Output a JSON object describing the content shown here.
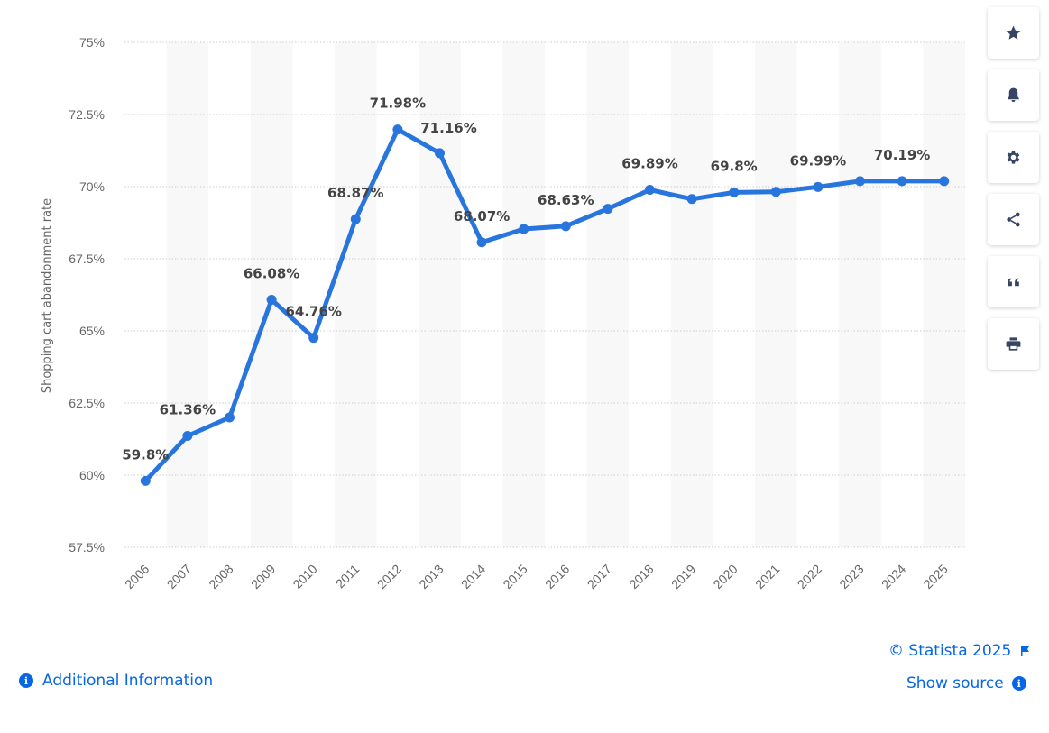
{
  "chart_data": {
    "type": "line",
    "ylabel": "Shopping cart abandonment rate",
    "xlabel": "",
    "categories": [
      "2006",
      "2007",
      "2008",
      "2009",
      "2010",
      "2011",
      "2012",
      "2013",
      "2014",
      "2015",
      "2016",
      "2017",
      "2018",
      "2019",
      "2020",
      "2021",
      "2022",
      "2023",
      "2024",
      "2025"
    ],
    "values": [
      59.8,
      61.36,
      62.0,
      66.08,
      64.76,
      68.87,
      71.98,
      71.16,
      68.07,
      68.53,
      68.63,
      69.23,
      69.89,
      69.57,
      69.8,
      69.82,
      69.99,
      70.19,
      70.19,
      70.19
    ],
    "data_labels": [
      {
        "index": 0,
        "text": "59.8%"
      },
      {
        "index": 1,
        "text": "61.36%"
      },
      {
        "index": 3,
        "text": "66.08%"
      },
      {
        "index": 4,
        "text": "64.76%"
      },
      {
        "index": 5,
        "text": "68.87%"
      },
      {
        "index": 6,
        "text": "71.98%"
      },
      {
        "index": 7,
        "text": "71.16%"
      },
      {
        "index": 8,
        "text": "68.07%"
      },
      {
        "index": 10,
        "text": "68.63%"
      },
      {
        "index": 12,
        "text": "69.89%"
      },
      {
        "index": 14,
        "text": "69.8%"
      },
      {
        "index": 16,
        "text": "69.99%"
      },
      {
        "index": 18,
        "text": "70.19%"
      }
    ],
    "yticks": [
      57.5,
      60,
      62.5,
      65,
      67.5,
      70,
      72.5,
      75
    ],
    "ytick_labels": [
      "57.5%",
      "60%",
      "62.5%",
      "65%",
      "67.5%",
      "70%",
      "72.5%",
      "75%"
    ],
    "ylim": [
      57.5,
      75
    ],
    "grid": true,
    "colors": {
      "line": "#2876dd",
      "grid": "#cccccc",
      "band": "#f8f8f8"
    }
  },
  "toolbar": {
    "icons": [
      "star-icon",
      "bell-icon",
      "gear-icon",
      "share-icon",
      "quote-icon",
      "print-icon"
    ]
  },
  "footer": {
    "copyright": "© Statista 2025",
    "show_source": "Show source",
    "additional_info": "Additional Information"
  }
}
